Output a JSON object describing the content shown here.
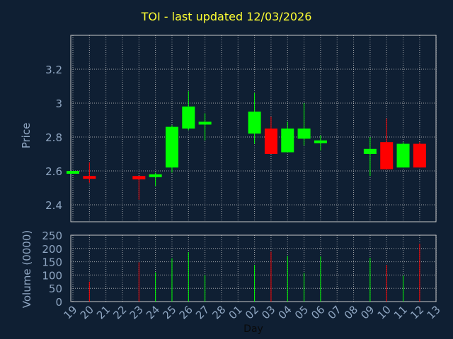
{
  "title": "TOI - last updated 12/03/2026",
  "chart_data": {
    "type": "candlestick",
    "title": "TOI - last updated 12/03/2026",
    "xlabel": "Day",
    "price_label": "Price",
    "volume_label": "Volume (0000)",
    "x_ticks": [
      "19",
      "20",
      "21",
      "22",
      "23",
      "24",
      "25",
      "26",
      "27",
      "28",
      "01",
      "02",
      "03",
      "04",
      "05",
      "06",
      "07",
      "08",
      "09",
      "10",
      "11",
      "12",
      "13"
    ],
    "price_ticks": [
      2.4,
      2.6,
      2.8,
      3,
      3.2
    ],
    "price_tick_labels": [
      "2.4",
      "2.6",
      "2.8",
      "3",
      "3.2"
    ],
    "price_range": [
      2.3,
      3.4
    ],
    "volume_ticks": [
      0,
      50,
      100,
      150,
      200,
      250
    ],
    "volume_tick_labels": [
      "0",
      "50",
      "100",
      "150",
      "200",
      "250"
    ],
    "volume_range": [
      0,
      250
    ],
    "grid": true,
    "up_color": "#00ff00",
    "down_color": "#ff0000",
    "candles": [
      {
        "day": "19",
        "i": 0,
        "open": 2.59,
        "close": 2.6,
        "high": 2.6,
        "low": 2.59,
        "volume": 0
      },
      {
        "day": "20",
        "i": 1,
        "open": 2.57,
        "close": 2.56,
        "high": 2.65,
        "low": 2.53,
        "volume": 75
      },
      {
        "day": "23",
        "i": 4,
        "open": 2.57,
        "close": 2.55,
        "high": 2.57,
        "low": 2.43,
        "volume": 148
      },
      {
        "day": "24",
        "i": 5,
        "open": 2.57,
        "close": 2.58,
        "high": 2.59,
        "low": 2.51,
        "volume": 110
      },
      {
        "day": "25",
        "i": 6,
        "open": 2.62,
        "close": 2.86,
        "high": 2.87,
        "low": 2.59,
        "volume": 163
      },
      {
        "day": "26",
        "i": 7,
        "open": 2.85,
        "close": 2.98,
        "high": 3.07,
        "low": 2.84,
        "volume": 186
      },
      {
        "day": "27",
        "i": 8,
        "open": 2.88,
        "close": 2.89,
        "high": 2.94,
        "low": 2.78,
        "volume": 100
      },
      {
        "day": "02",
        "i": 11,
        "open": 2.82,
        "close": 2.95,
        "high": 3.06,
        "low": 2.76,
        "volume": 138
      },
      {
        "day": "03",
        "i": 12,
        "open": 2.85,
        "close": 2.7,
        "high": 2.92,
        "low": 2.7,
        "volume": 188
      },
      {
        "day": "04",
        "i": 13,
        "open": 2.71,
        "close": 2.85,
        "high": 2.89,
        "low": 2.71,
        "volume": 172
      },
      {
        "day": "05",
        "i": 14,
        "open": 2.79,
        "close": 2.85,
        "high": 3.0,
        "low": 2.75,
        "volume": 108
      },
      {
        "day": "06",
        "i": 15,
        "open": 2.77,
        "close": 2.78,
        "high": 2.81,
        "low": 2.72,
        "volume": 170
      },
      {
        "day": "09",
        "i": 18,
        "open": 2.7,
        "close": 2.73,
        "high": 2.8,
        "low": 2.57,
        "volume": 165
      },
      {
        "day": "10",
        "i": 19,
        "open": 2.77,
        "close": 2.61,
        "high": 2.91,
        "low": 2.61,
        "volume": 138
      },
      {
        "day": "11",
        "i": 20,
        "open": 2.62,
        "close": 2.76,
        "high": 2.77,
        "low": 2.62,
        "volume": 98
      },
      {
        "day": "12",
        "i": 21,
        "open": 2.76,
        "close": 2.62,
        "high": 2.77,
        "low": 2.62,
        "volume": 218
      }
    ]
  }
}
